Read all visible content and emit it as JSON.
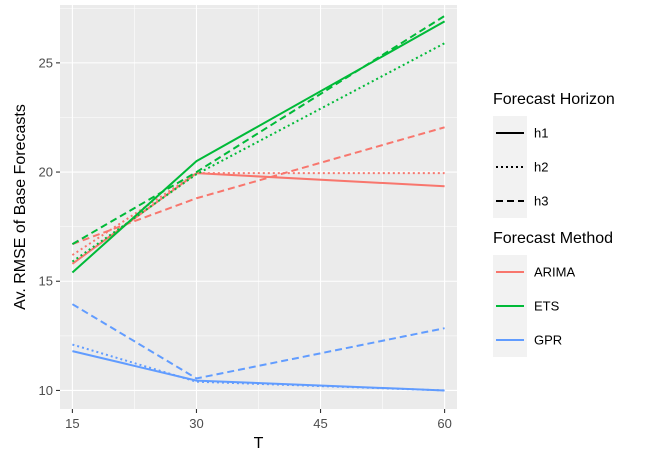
{
  "chart_data": {
    "type": "line",
    "x": [
      15,
      30,
      60
    ],
    "xlabel": "T",
    "ylabel": "Av. RMSE of Base Forecasts",
    "xlim": [
      13.5,
      61.5
    ],
    "ylim": [
      9.15,
      27.65
    ],
    "xticks": [
      15,
      30,
      45,
      60
    ],
    "yticks": [
      10,
      15,
      20,
      25
    ],
    "grid": true,
    "legend_placement": "right",
    "colors": {
      "ARIMA": "#F8766D",
      "ETS": "#00BA38",
      "GPR": "#619CFF"
    },
    "linetypes": {
      "h1": "solid",
      "h2": "dotted",
      "h3": "dashed"
    },
    "legends": [
      {
        "title": "Forecast Horizon",
        "key": "linetype",
        "entries": [
          "h1",
          "h2",
          "h3"
        ]
      },
      {
        "title": "Forecast Method",
        "key": "color",
        "entries": [
          "ARIMA",
          "ETS",
          "GPR"
        ]
      }
    ],
    "series": [
      {
        "method": "ARIMA",
        "horizon": "h1",
        "values": [
          15.8,
          19.95,
          19.35
        ]
      },
      {
        "method": "ARIMA",
        "horizon": "h2",
        "values": [
          16.2,
          19.95,
          19.95
        ]
      },
      {
        "method": "ARIMA",
        "horizon": "h3",
        "values": [
          16.7,
          18.8,
          22.05
        ]
      },
      {
        "method": "ETS",
        "horizon": "h1",
        "values": [
          15.4,
          20.5,
          26.9
        ]
      },
      {
        "method": "ETS",
        "horizon": "h2",
        "values": [
          15.9,
          19.9,
          25.9
        ]
      },
      {
        "method": "ETS",
        "horizon": "h3",
        "values": [
          16.7,
          20.0,
          27.15
        ]
      },
      {
        "method": "GPR",
        "horizon": "h1",
        "values": [
          11.8,
          10.45,
          10.0
        ]
      },
      {
        "method": "GPR",
        "horizon": "h2",
        "values": [
          12.1,
          10.4,
          10.0
        ]
      },
      {
        "method": "GPR",
        "horizon": "h3",
        "values": [
          13.95,
          10.55,
          12.85
        ]
      }
    ]
  }
}
